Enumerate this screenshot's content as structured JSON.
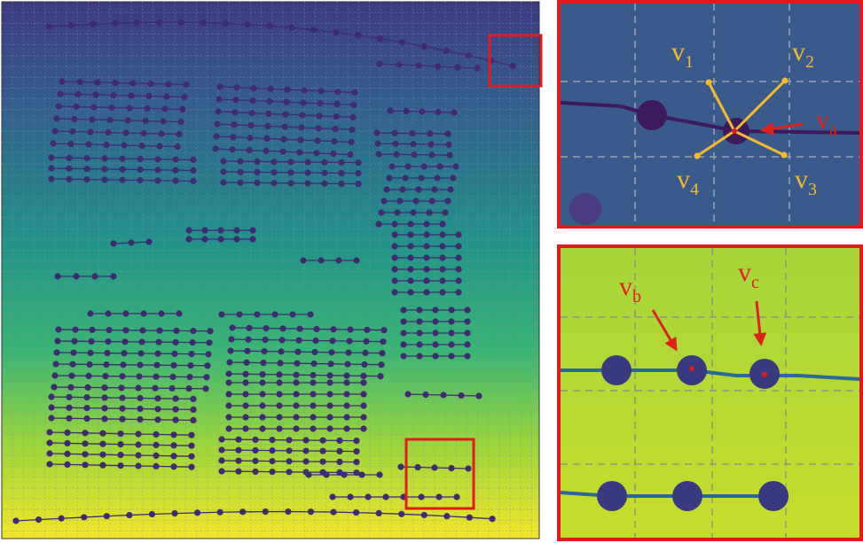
{
  "insets": {
    "top": {
      "labels": [
        {
          "main": "v",
          "sub": "1"
        },
        {
          "main": "v",
          "sub": "2"
        },
        {
          "main": "v",
          "sub": "3"
        },
        {
          "main": "v",
          "sub": "4"
        },
        {
          "main": "v",
          "sub": "a"
        }
      ]
    },
    "bottom": {
      "labels": [
        {
          "main": "v",
          "sub": "b"
        },
        {
          "main": "v",
          "sub": "c"
        }
      ]
    }
  }
}
